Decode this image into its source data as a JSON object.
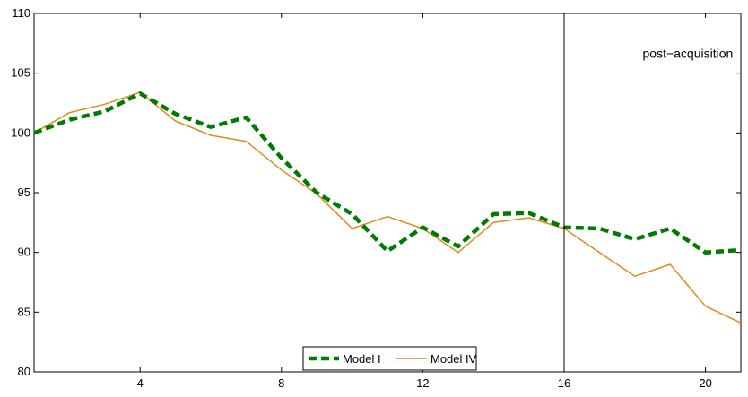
{
  "chart_data": {
    "type": "line",
    "title": "",
    "xlabel": "",
    "ylabel": "",
    "xlim": [
      1,
      21
    ],
    "ylim": [
      80,
      110
    ],
    "x_ticks": [
      4,
      8,
      12,
      16,
      20
    ],
    "y_ticks": [
      80,
      85,
      90,
      95,
      100,
      105,
      110
    ],
    "grid": false,
    "legend_position": "bottom-center",
    "x": [
      1,
      2,
      3,
      4,
      5,
      6,
      7,
      8,
      9,
      10,
      11,
      12,
      13,
      14,
      15,
      16,
      17,
      18,
      19,
      20,
      21
    ],
    "series": [
      {
        "name": "Model I",
        "style": "dashed",
        "color": "#007a00",
        "values": [
          100,
          101.1,
          101.8,
          103.3,
          101.6,
          100.5,
          101.3,
          97.9,
          95.0,
          93.2,
          90.1,
          92.1,
          90.5,
          93.2,
          93.3,
          92.1,
          92.0,
          91.1,
          92.0,
          90.0,
          90.2
        ]
      },
      {
        "name": "Model IV",
        "style": "solid",
        "color": "#e08a1c",
        "values": [
          100,
          101.7,
          102.4,
          103.4,
          101.0,
          99.8,
          99.3,
          96.9,
          94.9,
          92.0,
          93.0,
          92.0,
          90.0,
          92.5,
          92.9,
          92.0,
          90.0,
          88.0,
          89.0,
          85.5,
          84.1
        ]
      }
    ],
    "vertical_line_x": 16,
    "annotations": [
      {
        "text": "post−acquisition",
        "x": 19.5,
        "y": 106.3
      }
    ]
  }
}
